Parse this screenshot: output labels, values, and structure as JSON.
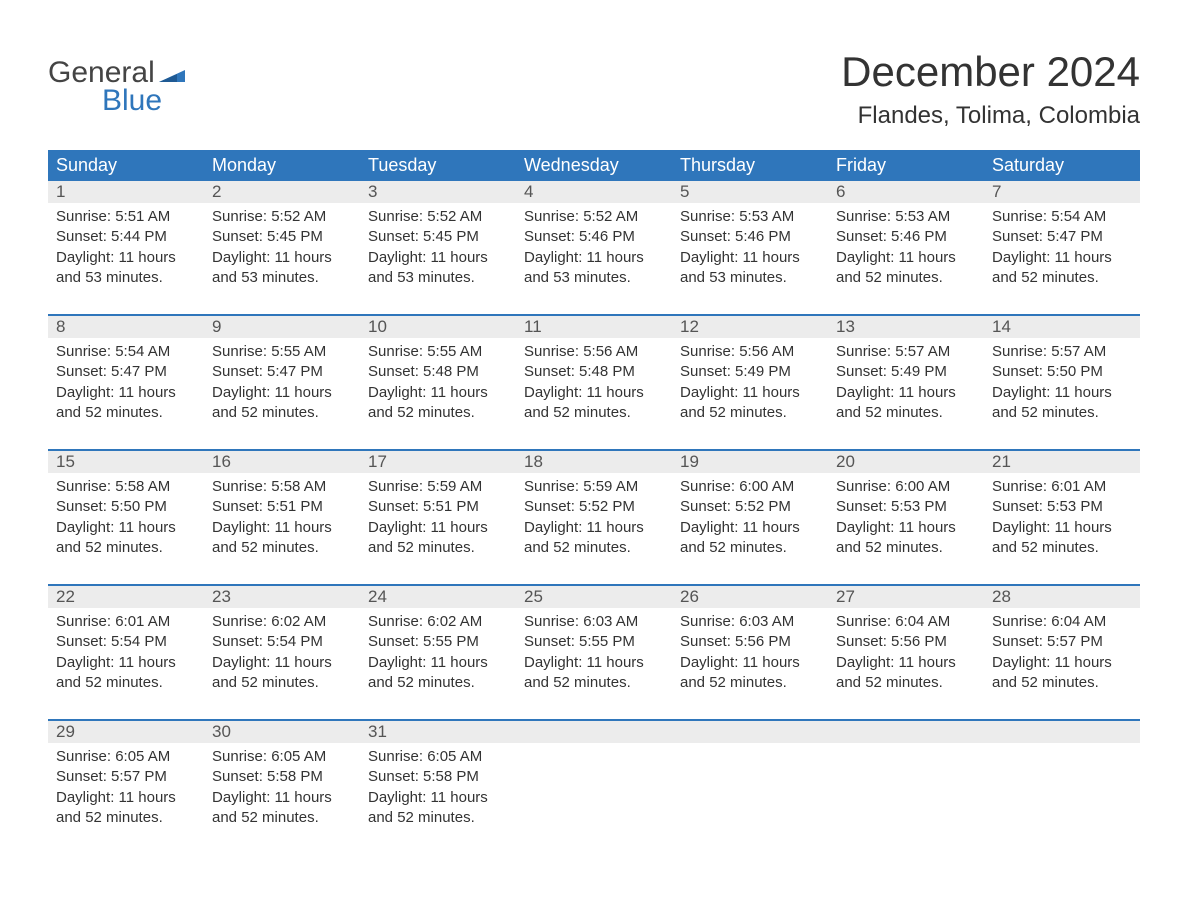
{
  "logo": {
    "text_top": "General",
    "text_bottom": "Blue",
    "flag_color": "#2f76bb"
  },
  "title": "December 2024",
  "location": "Flandes, Tolima, Colombia",
  "colors": {
    "header_bg": "#2f76bb",
    "header_text": "#ffffff",
    "date_bg": "#ececec",
    "week_border": "#2f76bb",
    "body_text": "#333333",
    "logo_gray": "#444444",
    "logo_blue": "#2f76bb"
  },
  "day_names": [
    "Sunday",
    "Monday",
    "Tuesday",
    "Wednesday",
    "Thursday",
    "Friday",
    "Saturday"
  ],
  "weeks": [
    [
      {
        "date": "1",
        "sunrise": "Sunrise: 5:51 AM",
        "sunset": "Sunset: 5:44 PM",
        "daylight1": "Daylight: 11 hours",
        "daylight2": "and 53 minutes."
      },
      {
        "date": "2",
        "sunrise": "Sunrise: 5:52 AM",
        "sunset": "Sunset: 5:45 PM",
        "daylight1": "Daylight: 11 hours",
        "daylight2": "and 53 minutes."
      },
      {
        "date": "3",
        "sunrise": "Sunrise: 5:52 AM",
        "sunset": "Sunset: 5:45 PM",
        "daylight1": "Daylight: 11 hours",
        "daylight2": "and 53 minutes."
      },
      {
        "date": "4",
        "sunrise": "Sunrise: 5:52 AM",
        "sunset": "Sunset: 5:46 PM",
        "daylight1": "Daylight: 11 hours",
        "daylight2": "and 53 minutes."
      },
      {
        "date": "5",
        "sunrise": "Sunrise: 5:53 AM",
        "sunset": "Sunset: 5:46 PM",
        "daylight1": "Daylight: 11 hours",
        "daylight2": "and 53 minutes."
      },
      {
        "date": "6",
        "sunrise": "Sunrise: 5:53 AM",
        "sunset": "Sunset: 5:46 PM",
        "daylight1": "Daylight: 11 hours",
        "daylight2": "and 52 minutes."
      },
      {
        "date": "7",
        "sunrise": "Sunrise: 5:54 AM",
        "sunset": "Sunset: 5:47 PM",
        "daylight1": "Daylight: 11 hours",
        "daylight2": "and 52 minutes."
      }
    ],
    [
      {
        "date": "8",
        "sunrise": "Sunrise: 5:54 AM",
        "sunset": "Sunset: 5:47 PM",
        "daylight1": "Daylight: 11 hours",
        "daylight2": "and 52 minutes."
      },
      {
        "date": "9",
        "sunrise": "Sunrise: 5:55 AM",
        "sunset": "Sunset: 5:47 PM",
        "daylight1": "Daylight: 11 hours",
        "daylight2": "and 52 minutes."
      },
      {
        "date": "10",
        "sunrise": "Sunrise: 5:55 AM",
        "sunset": "Sunset: 5:48 PM",
        "daylight1": "Daylight: 11 hours",
        "daylight2": "and 52 minutes."
      },
      {
        "date": "11",
        "sunrise": "Sunrise: 5:56 AM",
        "sunset": "Sunset: 5:48 PM",
        "daylight1": "Daylight: 11 hours",
        "daylight2": "and 52 minutes."
      },
      {
        "date": "12",
        "sunrise": "Sunrise: 5:56 AM",
        "sunset": "Sunset: 5:49 PM",
        "daylight1": "Daylight: 11 hours",
        "daylight2": "and 52 minutes."
      },
      {
        "date": "13",
        "sunrise": "Sunrise: 5:57 AM",
        "sunset": "Sunset: 5:49 PM",
        "daylight1": "Daylight: 11 hours",
        "daylight2": "and 52 minutes."
      },
      {
        "date": "14",
        "sunrise": "Sunrise: 5:57 AM",
        "sunset": "Sunset: 5:50 PM",
        "daylight1": "Daylight: 11 hours",
        "daylight2": "and 52 minutes."
      }
    ],
    [
      {
        "date": "15",
        "sunrise": "Sunrise: 5:58 AM",
        "sunset": "Sunset: 5:50 PM",
        "daylight1": "Daylight: 11 hours",
        "daylight2": "and 52 minutes."
      },
      {
        "date": "16",
        "sunrise": "Sunrise: 5:58 AM",
        "sunset": "Sunset: 5:51 PM",
        "daylight1": "Daylight: 11 hours",
        "daylight2": "and 52 minutes."
      },
      {
        "date": "17",
        "sunrise": "Sunrise: 5:59 AM",
        "sunset": "Sunset: 5:51 PM",
        "daylight1": "Daylight: 11 hours",
        "daylight2": "and 52 minutes."
      },
      {
        "date": "18",
        "sunrise": "Sunrise: 5:59 AM",
        "sunset": "Sunset: 5:52 PM",
        "daylight1": "Daylight: 11 hours",
        "daylight2": "and 52 minutes."
      },
      {
        "date": "19",
        "sunrise": "Sunrise: 6:00 AM",
        "sunset": "Sunset: 5:52 PM",
        "daylight1": "Daylight: 11 hours",
        "daylight2": "and 52 minutes."
      },
      {
        "date": "20",
        "sunrise": "Sunrise: 6:00 AM",
        "sunset": "Sunset: 5:53 PM",
        "daylight1": "Daylight: 11 hours",
        "daylight2": "and 52 minutes."
      },
      {
        "date": "21",
        "sunrise": "Sunrise: 6:01 AM",
        "sunset": "Sunset: 5:53 PM",
        "daylight1": "Daylight: 11 hours",
        "daylight2": "and 52 minutes."
      }
    ],
    [
      {
        "date": "22",
        "sunrise": "Sunrise: 6:01 AM",
        "sunset": "Sunset: 5:54 PM",
        "daylight1": "Daylight: 11 hours",
        "daylight2": "and 52 minutes."
      },
      {
        "date": "23",
        "sunrise": "Sunrise: 6:02 AM",
        "sunset": "Sunset: 5:54 PM",
        "daylight1": "Daylight: 11 hours",
        "daylight2": "and 52 minutes."
      },
      {
        "date": "24",
        "sunrise": "Sunrise: 6:02 AM",
        "sunset": "Sunset: 5:55 PM",
        "daylight1": "Daylight: 11 hours",
        "daylight2": "and 52 minutes."
      },
      {
        "date": "25",
        "sunrise": "Sunrise: 6:03 AM",
        "sunset": "Sunset: 5:55 PM",
        "daylight1": "Daylight: 11 hours",
        "daylight2": "and 52 minutes."
      },
      {
        "date": "26",
        "sunrise": "Sunrise: 6:03 AM",
        "sunset": "Sunset: 5:56 PM",
        "daylight1": "Daylight: 11 hours",
        "daylight2": "and 52 minutes."
      },
      {
        "date": "27",
        "sunrise": "Sunrise: 6:04 AM",
        "sunset": "Sunset: 5:56 PM",
        "daylight1": "Daylight: 11 hours",
        "daylight2": "and 52 minutes."
      },
      {
        "date": "28",
        "sunrise": "Sunrise: 6:04 AM",
        "sunset": "Sunset: 5:57 PM",
        "daylight1": "Daylight: 11 hours",
        "daylight2": "and 52 minutes."
      }
    ],
    [
      {
        "date": "29",
        "sunrise": "Sunrise: 6:05 AM",
        "sunset": "Sunset: 5:57 PM",
        "daylight1": "Daylight: 11 hours",
        "daylight2": "and 52 minutes."
      },
      {
        "date": "30",
        "sunrise": "Sunrise: 6:05 AM",
        "sunset": "Sunset: 5:58 PM",
        "daylight1": "Daylight: 11 hours",
        "daylight2": "and 52 minutes."
      },
      {
        "date": "31",
        "sunrise": "Sunrise: 6:05 AM",
        "sunset": "Sunset: 5:58 PM",
        "daylight1": "Daylight: 11 hours",
        "daylight2": "and 52 minutes."
      },
      {
        "date": "",
        "sunrise": "",
        "sunset": "",
        "daylight1": "",
        "daylight2": ""
      },
      {
        "date": "",
        "sunrise": "",
        "sunset": "",
        "daylight1": "",
        "daylight2": ""
      },
      {
        "date": "",
        "sunrise": "",
        "sunset": "",
        "daylight1": "",
        "daylight2": ""
      },
      {
        "date": "",
        "sunrise": "",
        "sunset": "",
        "daylight1": "",
        "daylight2": ""
      }
    ]
  ]
}
